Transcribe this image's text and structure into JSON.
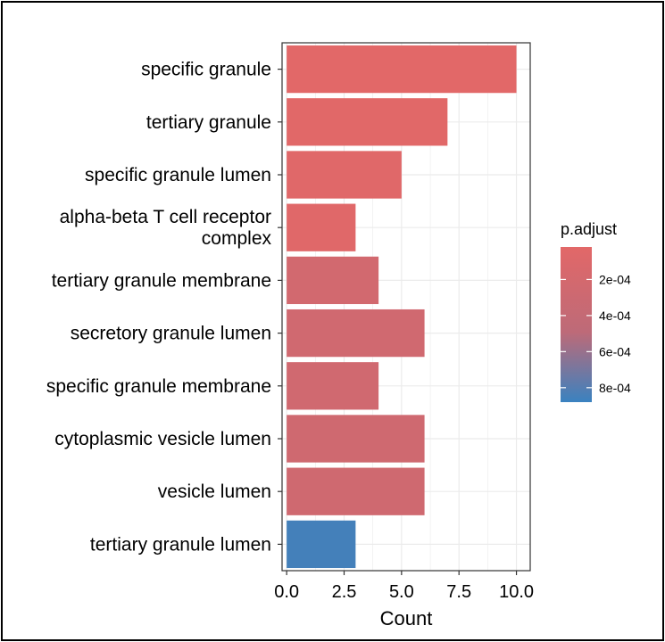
{
  "chart_data": {
    "type": "bar",
    "orientation": "horizontal",
    "categories": [
      "specific granule",
      "tertiary granule",
      "specific granule lumen",
      "alpha-beta T cell receptor complex",
      "tertiary granule membrane",
      "secretory granule lumen",
      "specific granule membrane",
      "cytoplasmic vesicle lumen",
      "vesicle lumen",
      "tertiary granule lumen"
    ],
    "category_lines": [
      [
        "specific granule"
      ],
      [
        "tertiary granule"
      ],
      [
        "specific granule lumen"
      ],
      [
        "alpha-beta T cell receptor",
        "complex"
      ],
      [
        "tertiary granule membrane"
      ],
      [
        "secretory granule lumen"
      ],
      [
        "specific granule membrane"
      ],
      [
        "cytoplasmic vesicle lumen"
      ],
      [
        "vesicle lumen"
      ],
      [
        "tertiary granule lumen"
      ]
    ],
    "values": [
      10,
      7,
      5,
      3,
      4,
      6,
      4,
      6,
      6,
      3
    ],
    "p_adjust": [
      2e-05,
      3e-05,
      4e-05,
      5e-05,
      0.00022,
      0.00025,
      0.00025,
      0.00026,
      0.00026,
      0.00085
    ],
    "xlabel": "Count",
    "ylabel": "",
    "xlim": [
      -0.2,
      10.6
    ],
    "xticks": [
      0,
      2.5,
      5,
      7.5,
      10
    ],
    "xtick_labels": [
      "0.0",
      "2.5",
      "5.0",
      "7.5",
      "10.0"
    ],
    "grid": true,
    "legend": {
      "title": "p.adjust",
      "position": "right",
      "range": [
        2e-05,
        0.00088
      ],
      "ticks": [
        0.0002,
        0.0004,
        0.0006,
        0.0008
      ],
      "tick_labels": [
        "2e-04",
        "4e-04",
        "6e-04",
        "8e-04"
      ],
      "color_low": "#e26868",
      "color_high": "#3a82c0"
    }
  }
}
